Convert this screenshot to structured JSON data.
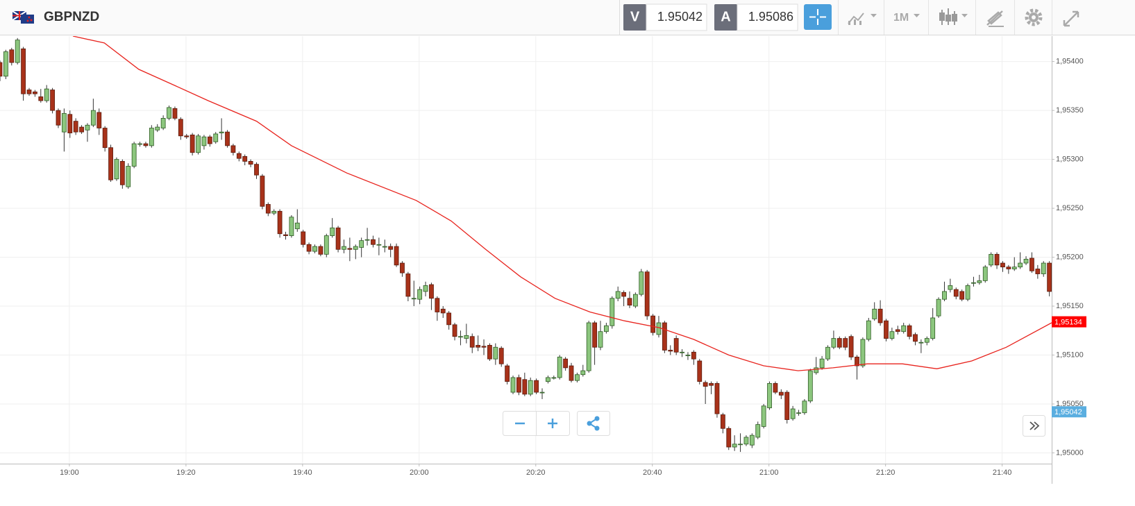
{
  "header": {
    "symbol": "GBPNZD",
    "bid_label": "V",
    "bid": "1.95042",
    "ask_label": "A",
    "ask": "1.95086",
    "timeframe": "1M"
  },
  "chart_data": {
    "type": "candlestick",
    "up_color": "#8cc67e",
    "down_color": "#a8321a",
    "xlim": [
      0,
      180.4
    ],
    "xticks": [
      {
        "value": 11.9,
        "label": "19:00"
      },
      {
        "value": 31.9,
        "label": "19:20"
      },
      {
        "value": 51.9,
        "label": "19:40"
      },
      {
        "value": 71.9,
        "label": "20:00"
      },
      {
        "value": 91.9,
        "label": "20:20"
      },
      {
        "value": 111.9,
        "label": "20:40"
      },
      {
        "value": 131.9,
        "label": "21:00"
      },
      {
        "value": 151.9,
        "label": "21:20"
      },
      {
        "value": 171.9,
        "label": "21:40"
      }
    ],
    "ylim": [
      1.94989,
      1.95426
    ],
    "yticks": [
      {
        "value": 1.95,
        "label": "1,95000"
      },
      {
        "value": 1.9505,
        "label": "1,95050"
      },
      {
        "value": 1.951,
        "label": "1,95100"
      },
      {
        "value": 1.9515,
        "label": "1,95150"
      },
      {
        "value": 1.952,
        "label": "1,95200"
      },
      {
        "value": 1.9525,
        "label": "1,95250"
      },
      {
        "value": 1.953,
        "label": "1,95300"
      },
      {
        "value": 1.9535,
        "label": "1,95350"
      },
      {
        "value": 1.954,
        "label": "1,95400"
      }
    ],
    "grid": true,
    "candles": {
      "open": [
        1.95399,
        1.95385,
        1.95412,
        1.95399,
        1.95413,
        1.95371,
        1.95369,
        1.95364,
        1.9536,
        1.95371,
        1.9535,
        1.95328,
        1.95346,
        1.95339,
        1.95333,
        1.9533,
        1.95335,
        1.95348,
        1.95332,
        1.95312,
        1.9528,
        1.95298,
        1.95272,
        1.95293,
        1.95316,
        1.95316,
        1.95314,
        1.9533,
        1.95332,
        1.95342,
        1.95352,
        1.95341,
        1.95324,
        1.95325,
        1.95307,
        1.95314,
        1.95323,
        1.95318,
        1.95327,
        1.95328,
        1.95314,
        1.95306,
        1.95303,
        1.95298,
        1.95295,
        1.95283,
        1.95254,
        1.95245,
        1.95247,
        1.95223,
        1.95222,
        1.95229,
        1.95226,
        1.95213,
        1.95206,
        1.95211,
        1.95203,
        1.95222,
        1.9523,
        1.95208,
        1.95209,
        1.95208,
        1.9521,
        1.95218,
        1.95218,
        1.95213,
        1.95211,
        1.95211,
        1.95211,
        1.95194,
        1.95183,
        1.95158,
        1.95157,
        1.95165,
        1.95172,
        1.95158,
        1.95147,
        1.95143,
        1.95131,
        1.95119,
        1.95117,
        1.95119,
        1.9511,
        1.95109,
        1.9511,
        1.95096,
        1.95107,
        1.95089,
        1.95062,
        1.95077,
        1.95075,
        1.9506,
        1.95074,
        1.95062,
        1.95073,
        1.95077,
        1.95077,
        1.95096,
        1.95089,
        1.95074,
        1.9508,
        1.95084,
        1.95133,
        1.95108,
        1.95124,
        1.9513,
        1.95158,
        1.95164,
        1.95158,
        1.9515,
        1.95162,
        1.95185,
        1.9514,
        1.95121,
        1.95133,
        1.95105,
        1.95117,
        1.95103,
        1.951,
        1.95103,
        1.95094,
        1.95072,
        1.95071,
        1.95071,
        1.95039,
        1.95025,
        1.95006,
        1.95009,
        1.95009,
        1.95008,
        1.95016,
        1.95027,
        1.95046,
        1.95071,
        1.95062,
        1.95062,
        1.95035,
        1.95041,
        1.95041,
        1.95053,
        1.95082,
        1.95087,
        1.95096,
        1.95108,
        1.95117,
        1.95117,
        1.95119,
        1.95098,
        1.95089,
        1.95116,
        1.95137,
        1.95147,
        1.95135,
        1.95117,
        1.95126,
        1.95124,
        1.9513,
        1.95121,
        1.95113,
        1.95113,
        1.95117,
        1.9514,
        1.95157,
        1.95167,
        1.95167,
        1.95165,
        1.95157,
        1.95174,
        1.95174,
        1.95176,
        1.95192,
        1.95203,
        1.95194,
        1.9519,
        1.95188,
        1.9519,
        1.95194,
        1.95199,
        1.95188,
        1.95183,
        1.95194
      ],
      "high": [
        1.95401,
        1.95412,
        1.95414,
        1.95424,
        1.95415,
        1.95373,
        1.95371,
        1.95372,
        1.95376,
        1.95373,
        1.95352,
        1.95352,
        1.9535,
        1.95342,
        1.95335,
        1.95337,
        1.95362,
        1.95352,
        1.95334,
        1.95315,
        1.95302,
        1.953,
        1.95296,
        1.95318,
        1.95318,
        1.95318,
        1.95335,
        1.95336,
        1.95345,
        1.95355,
        1.95354,
        1.95343,
        1.95326,
        1.95327,
        1.95326,
        1.95325,
        1.95325,
        1.95328,
        1.95342,
        1.9533,
        1.95316,
        1.95308,
        1.95305,
        1.953,
        1.95297,
        1.95285,
        1.95256,
        1.95249,
        1.95249,
        1.95226,
        1.95243,
        1.95249,
        1.95228,
        1.95215,
        1.95213,
        1.95213,
        1.95224,
        1.9524,
        1.95232,
        1.95218,
        1.9522,
        1.95213,
        1.9522,
        1.9523,
        1.95222,
        1.9522,
        1.95218,
        1.95214,
        1.95214,
        1.95196,
        1.95185,
        1.95176,
        1.9517,
        1.95175,
        1.95174,
        1.9516,
        1.9515,
        1.95145,
        1.95133,
        1.95125,
        1.95132,
        1.95122,
        1.9512,
        1.95116,
        1.95112,
        1.95112,
        1.95109,
        1.95091,
        1.95079,
        1.9508,
        1.95082,
        1.95077,
        1.95076,
        1.95066,
        1.95079,
        1.95079,
        1.951,
        1.95098,
        1.95092,
        1.95082,
        1.9509,
        1.95135,
        1.95135,
        1.95135,
        1.95133,
        1.9516,
        1.9517,
        1.95166,
        1.95165,
        1.95164,
        1.95188,
        1.95187,
        1.95142,
        1.9514,
        1.95135,
        1.9511,
        1.9512,
        1.95106,
        1.95103,
        1.95105,
        1.95096,
        1.95074,
        1.95073,
        1.95073,
        1.95041,
        1.95027,
        1.95018,
        1.9502,
        1.95018,
        1.9502,
        1.95032,
        1.9505,
        1.95073,
        1.95073,
        1.95065,
        1.95064,
        1.95048,
        1.95044,
        1.95055,
        1.95086,
        1.95098,
        1.95099,
        1.9511,
        1.95125,
        1.95119,
        1.95119,
        1.95121,
        1.951,
        1.95118,
        1.95138,
        1.95154,
        1.95156,
        1.95137,
        1.95128,
        1.9513,
        1.95133,
        1.95132,
        1.95123,
        1.95116,
        1.95119,
        1.95148,
        1.95159,
        1.95175,
        1.95178,
        1.95169,
        1.95167,
        1.95173,
        1.9518,
        1.95182,
        1.95192,
        1.95205,
        1.95205,
        1.95196,
        1.95192,
        1.952,
        1.95205,
        1.95201,
        1.95205,
        1.95192,
        1.95196,
        1.95196
      ],
      "low": [
        1.9538,
        1.95382,
        1.95396,
        1.95397,
        1.9536,
        1.95365,
        1.95364,
        1.95358,
        1.95358,
        1.95347,
        1.95332,
        1.95308,
        1.95322,
        1.95325,
        1.95326,
        1.95318,
        1.95333,
        1.95325,
        1.95308,
        1.95277,
        1.95278,
        1.9527,
        1.9527,
        1.95291,
        1.95313,
        1.95312,
        1.95312,
        1.95328,
        1.9533,
        1.9534,
        1.9534,
        1.9532,
        1.95321,
        1.95304,
        1.95305,
        1.9531,
        1.95313,
        1.95316,
        1.9532,
        1.95312,
        1.95304,
        1.95298,
        1.95294,
        1.95292,
        1.9528,
        1.95249,
        1.95242,
        1.95243,
        1.9522,
        1.95218,
        1.9522,
        1.95226,
        1.9521,
        1.95203,
        1.95204,
        1.95201,
        1.952,
        1.9522,
        1.95205,
        1.95204,
        1.95196,
        1.95198,
        1.952,
        1.95212,
        1.9521,
        1.95202,
        1.95205,
        1.952,
        1.9519,
        1.9518,
        1.95155,
        1.9515,
        1.95152,
        1.9516,
        1.95146,
        1.95135,
        1.95138,
        1.95126,
        1.95115,
        1.9511,
        1.95112,
        1.95102,
        1.95104,
        1.951,
        1.95094,
        1.9509,
        1.95088,
        1.9507,
        1.9506,
        1.95059,
        1.95058,
        1.95058,
        1.9506,
        1.95055,
        1.95071,
        1.95075,
        1.95075,
        1.95084,
        1.95072,
        1.95072,
        1.95078,
        1.95082,
        1.9509,
        1.95105,
        1.95122,
        1.95127,
        1.95155,
        1.9515,
        1.95148,
        1.95148,
        1.9516,
        1.95136,
        1.9512,
        1.95118,
        1.95102,
        1.951,
        1.951,
        1.95098,
        1.95095,
        1.9509,
        1.9507,
        1.9505,
        1.9506,
        1.95036,
        1.9502,
        1.95003,
        1.95002,
        1.95001,
        1.95007,
        1.95005,
        1.95014,
        1.95025,
        1.95044,
        1.9506,
        1.95055,
        1.9503,
        1.95033,
        1.95038,
        1.95039,
        1.95051,
        1.9508,
        1.95085,
        1.95094,
        1.95106,
        1.95106,
        1.95105,
        1.95095,
        1.95075,
        1.95087,
        1.95114,
        1.95135,
        1.9513,
        1.95114,
        1.95115,
        1.95121,
        1.95122,
        1.95116,
        1.9511,
        1.95102,
        1.9511,
        1.95115,
        1.95138,
        1.95155,
        1.95164,
        1.95157,
        1.95155,
        1.95155,
        1.9517,
        1.95172,
        1.95174,
        1.9519,
        1.95188,
        1.95185,
        1.95183,
        1.95186,
        1.95188,
        1.95192,
        1.95184,
        1.95178,
        1.9518,
        1.9516
      ],
      "close": [
        1.95385,
        1.9541,
        1.95399,
        1.95422,
        1.95367,
        1.95367,
        1.95367,
        1.9536,
        1.95372,
        1.9535,
        1.95335,
        1.95347,
        1.95327,
        1.95328,
        1.95328,
        1.95335,
        1.9535,
        1.95332,
        1.95312,
        1.95279,
        1.953,
        1.95274,
        1.95293,
        1.95316,
        1.95316,
        1.95314,
        1.95332,
        1.95333,
        1.95342,
        1.95353,
        1.95342,
        1.95324,
        1.95323,
        1.95307,
        1.95324,
        1.95323,
        1.95316,
        1.95326,
        1.95328,
        1.95314,
        1.95307,
        1.95301,
        1.95298,
        1.95295,
        1.95284,
        1.95252,
        1.95245,
        1.95247,
        1.95224,
        1.95222,
        1.95241,
        1.95235,
        1.95213,
        1.95206,
        1.95211,
        1.95203,
        1.95222,
        1.9523,
        1.95208,
        1.95211,
        1.95208,
        1.95211,
        1.95217,
        1.95218,
        1.95213,
        1.95213,
        1.95211,
        1.95208,
        1.95192,
        1.95184,
        1.9516,
        1.95158,
        1.95167,
        1.95171,
        1.95158,
        1.95144,
        1.95143,
        1.95131,
        1.95119,
        1.95119,
        1.9512,
        1.95108,
        1.95108,
        1.95108,
        1.95096,
        1.95108,
        1.95091,
        1.95073,
        1.95077,
        1.95062,
        1.9506,
        1.95074,
        1.95062,
        1.95062,
        1.95077,
        1.95077,
        1.95098,
        1.95087,
        1.95074,
        1.9508,
        1.95084,
        1.95133,
        1.95108,
        1.95124,
        1.9513,
        1.95158,
        1.95165,
        1.9516,
        1.95151,
        1.95162,
        1.95185,
        1.9514,
        1.95123,
        1.95133,
        1.95105,
        1.95104,
        1.95103,
        1.95103,
        1.951,
        1.95096,
        1.95073,
        1.95068,
        1.95069,
        1.9504,
        1.95025,
        1.95006,
        1.95009,
        1.95009,
        1.95016,
        1.95018,
        1.95029,
        1.95048,
        1.95071,
        1.95062,
        1.95059,
        1.95034,
        1.95045,
        1.95041,
        1.95053,
        1.95084,
        1.95087,
        1.95096,
        1.95108,
        1.95117,
        1.95108,
        1.95108,
        1.95098,
        1.95089,
        1.95116,
        1.95135,
        1.95147,
        1.95133,
        1.95117,
        1.95124,
        1.95124,
        1.9513,
        1.95119,
        1.95114,
        1.95113,
        1.95117,
        1.95138,
        1.95157,
        1.95165,
        1.95171,
        1.9516,
        1.95157,
        1.95171,
        1.95174,
        1.95176,
        1.9519,
        1.95203,
        1.95192,
        1.9519,
        1.95188,
        1.9519,
        1.95194,
        1.95198,
        1.95186,
        1.95183,
        1.95194,
        1.95165
      ]
    },
    "moving_average": {
      "color": "#e8231d",
      "x": [
        12.5,
        17.9,
        23.8,
        29.8,
        35.7,
        44,
        50,
        59.5,
        71.4,
        77.4,
        83.3,
        89.3,
        95.2,
        101.2,
        107.1,
        113.1,
        119,
        125,
        131,
        136.9,
        142.9,
        148.8,
        154.8,
        160.7,
        166.7,
        172.6,
        180.4
      ],
      "values": [
        1.95426,
        1.95419,
        1.95392,
        1.95376,
        1.9536,
        1.95339,
        1.95314,
        1.95286,
        1.95258,
        1.95237,
        1.95208,
        1.9518,
        1.95158,
        1.95144,
        1.95135,
        1.95128,
        1.95116,
        1.951,
        1.95089,
        1.95084,
        1.95087,
        1.95091,
        1.95091,
        1.95086,
        1.95094,
        1.95108,
        1.95133
      ]
    },
    "price_tags": [
      {
        "value": 1.95134,
        "label": "1,95134",
        "color": "#ff0000"
      },
      {
        "value": 1.95042,
        "label": "1,95042",
        "color": "#5aaee0"
      }
    ]
  }
}
